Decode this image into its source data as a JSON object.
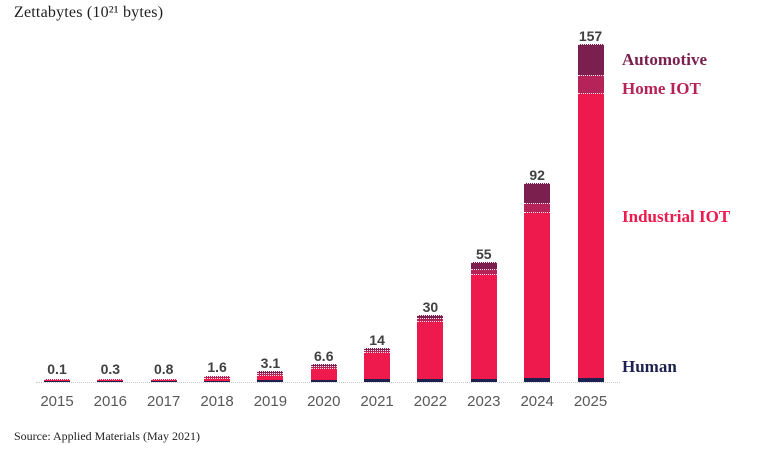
{
  "title": "Zettabytes (10²¹ bytes)",
  "source": "Source: Applied Materials (May 2021)",
  "colors": {
    "human": "#1d2150",
    "industrial_iot": "#ee1a4d",
    "home_iot": "#b52358",
    "automotive": "#7a1f4e",
    "value_label": "#404040",
    "year_label": "#595959",
    "axis_line": "#c8c8c8"
  },
  "series_labels": {
    "automotive": "Automotive",
    "home_iot": "Home IOT",
    "industrial_iot": "Industrial IOT",
    "human": "Human"
  },
  "chart_data": {
    "type": "bar",
    "stacked": true,
    "title": "Zettabytes (10²¹ bytes)",
    "xlabel": "",
    "ylabel": "Zettabytes",
    "ylim": [
      0,
      160
    ],
    "grid": false,
    "legend_position": "right-of-bars",
    "categories": [
      "2015",
      "2016",
      "2017",
      "2018",
      "2019",
      "2020",
      "2021",
      "2022",
      "2023",
      "2024",
      "2025"
    ],
    "totals": [
      0.1,
      0.3,
      0.8,
      1.6,
      3.1,
      6.6,
      14,
      30,
      55,
      92,
      157
    ],
    "total_labels": [
      "0.1",
      "0.3",
      "0.8",
      "1.6",
      "3.1",
      "6.6",
      "14",
      "30",
      "55",
      "92",
      "157"
    ],
    "series": [
      {
        "name": "Human",
        "color_key": "human",
        "values": [
          0.06,
          0.15,
          0.3,
          0.5,
          0.9,
          1.0,
          1.2,
          1.4,
          1.5,
          1.8,
          2.0
        ]
      },
      {
        "name": "Industrial IOT",
        "color_key": "industrial_iot",
        "values": [
          0.04,
          0.15,
          0.5,
          1.0,
          2.0,
          5.2,
          12.2,
          26.6,
          48.5,
          77.2,
          133.0
        ]
      },
      {
        "name": "Home IOT",
        "color_key": "home_iot",
        "values": [
          0,
          0,
          0,
          0.1,
          0.1,
          0.2,
          0.3,
          1.0,
          2.0,
          4.0,
          8.0
        ]
      },
      {
        "name": "Automotive",
        "color_key": "automotive",
        "values": [
          0,
          0,
          0,
          0,
          0.1,
          0.2,
          0.3,
          1.0,
          3.0,
          9.0,
          14.0
        ]
      }
    ],
    "annotations": [
      "Automotive",
      "Home IOT",
      "Industrial IOT",
      "Human"
    ]
  }
}
